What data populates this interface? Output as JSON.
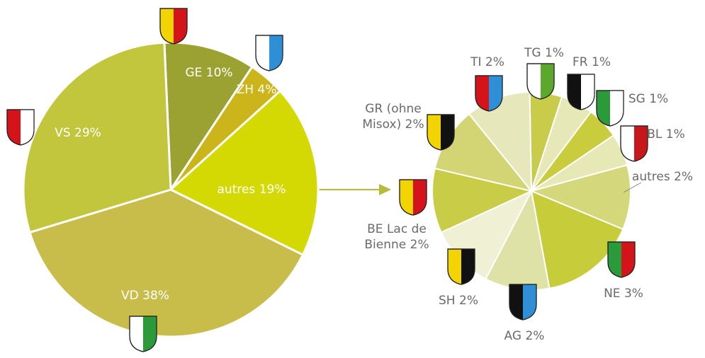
{
  "chart_data": [
    {
      "type": "pie",
      "categories": [
        "GE",
        "ZH",
        "autres",
        "VD",
        "VS"
      ],
      "values": [
        10,
        4,
        19,
        38,
        29
      ],
      "value_labels": [
        "10%",
        "4%",
        "19%",
        "38%",
        "29%"
      ],
      "colors": [
        "#9ca231",
        "#cbb51a",
        "#d4d803",
        "#c8bd4b",
        "#c1c63d"
      ]
    },
    {
      "type": "pie",
      "categories": [
        "TG",
        "FR",
        "SG",
        "BL",
        "autres",
        "NE",
        "AG",
        "SH",
        "BE Lac de Bienne",
        "GR (ohne Misox)",
        "TI"
      ],
      "values": [
        1,
        1,
        1,
        1,
        2,
        3,
        2,
        2,
        2,
        2,
        2
      ],
      "value_labels": [
        "1%",
        "1%",
        "1%",
        "1%",
        "2%",
        "3%",
        "2%",
        "2%",
        "2%",
        "2%",
        "2%"
      ],
      "colors": [
        "#c8cc4a",
        "#e6e8b8",
        "#c9cc3d",
        "#e6e8b5",
        "#d4d77a",
        "#c6cc3a",
        "#dfe2a6",
        "#eff0d4",
        "#c9cc47",
        "#d3d574",
        "#e6e8bc"
      ]
    }
  ]
}
